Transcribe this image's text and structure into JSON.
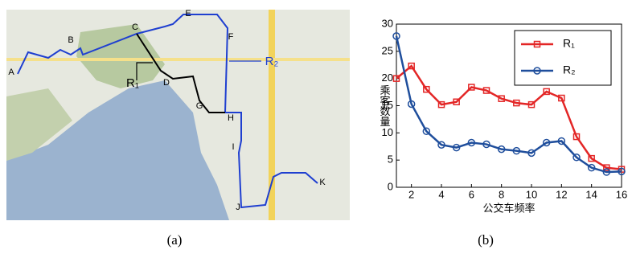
{
  "map": {
    "labels": [
      "A",
      "B",
      "C",
      "D",
      "E",
      "F",
      "G",
      "H",
      "I",
      "J",
      "K"
    ],
    "route_labels": [
      "R₁",
      "R₂"
    ]
  },
  "captions": [
    "(a)",
    "(b)"
  ],
  "chart_data": {
    "type": "line",
    "xlabel": "公交车频率",
    "ylabel": "乘客数量",
    "x": [
      1,
      2,
      3,
      4,
      5,
      6,
      7,
      8,
      9,
      10,
      11,
      12,
      13,
      14,
      15,
      16
    ],
    "series": [
      {
        "name": "R₁",
        "color": "#e32626",
        "marker": "square",
        "values": [
          20,
          22.3,
          18,
          15.2,
          15.7,
          18.4,
          17.8,
          16.3,
          15.5,
          15.2,
          17.6,
          16.4,
          9.3,
          5.3,
          3.6,
          3.3
        ]
      },
      {
        "name": "R₂",
        "color": "#1f4e9c",
        "marker": "circle",
        "values": [
          27.8,
          15.3,
          10.3,
          7.8,
          7.3,
          8.2,
          7.9,
          7.0,
          6.7,
          6.3,
          8.2,
          8.5,
          5.5,
          3.6,
          2.8,
          2.9
        ]
      }
    ],
    "xlim": [
      1,
      16
    ],
    "xticks": [
      2,
      4,
      6,
      8,
      10,
      12,
      14,
      16
    ],
    "ylim": [
      0,
      30
    ],
    "yticks": [
      0,
      5,
      10,
      15,
      20,
      25,
      30
    ],
    "grid": false,
    "legend": "upper right"
  }
}
